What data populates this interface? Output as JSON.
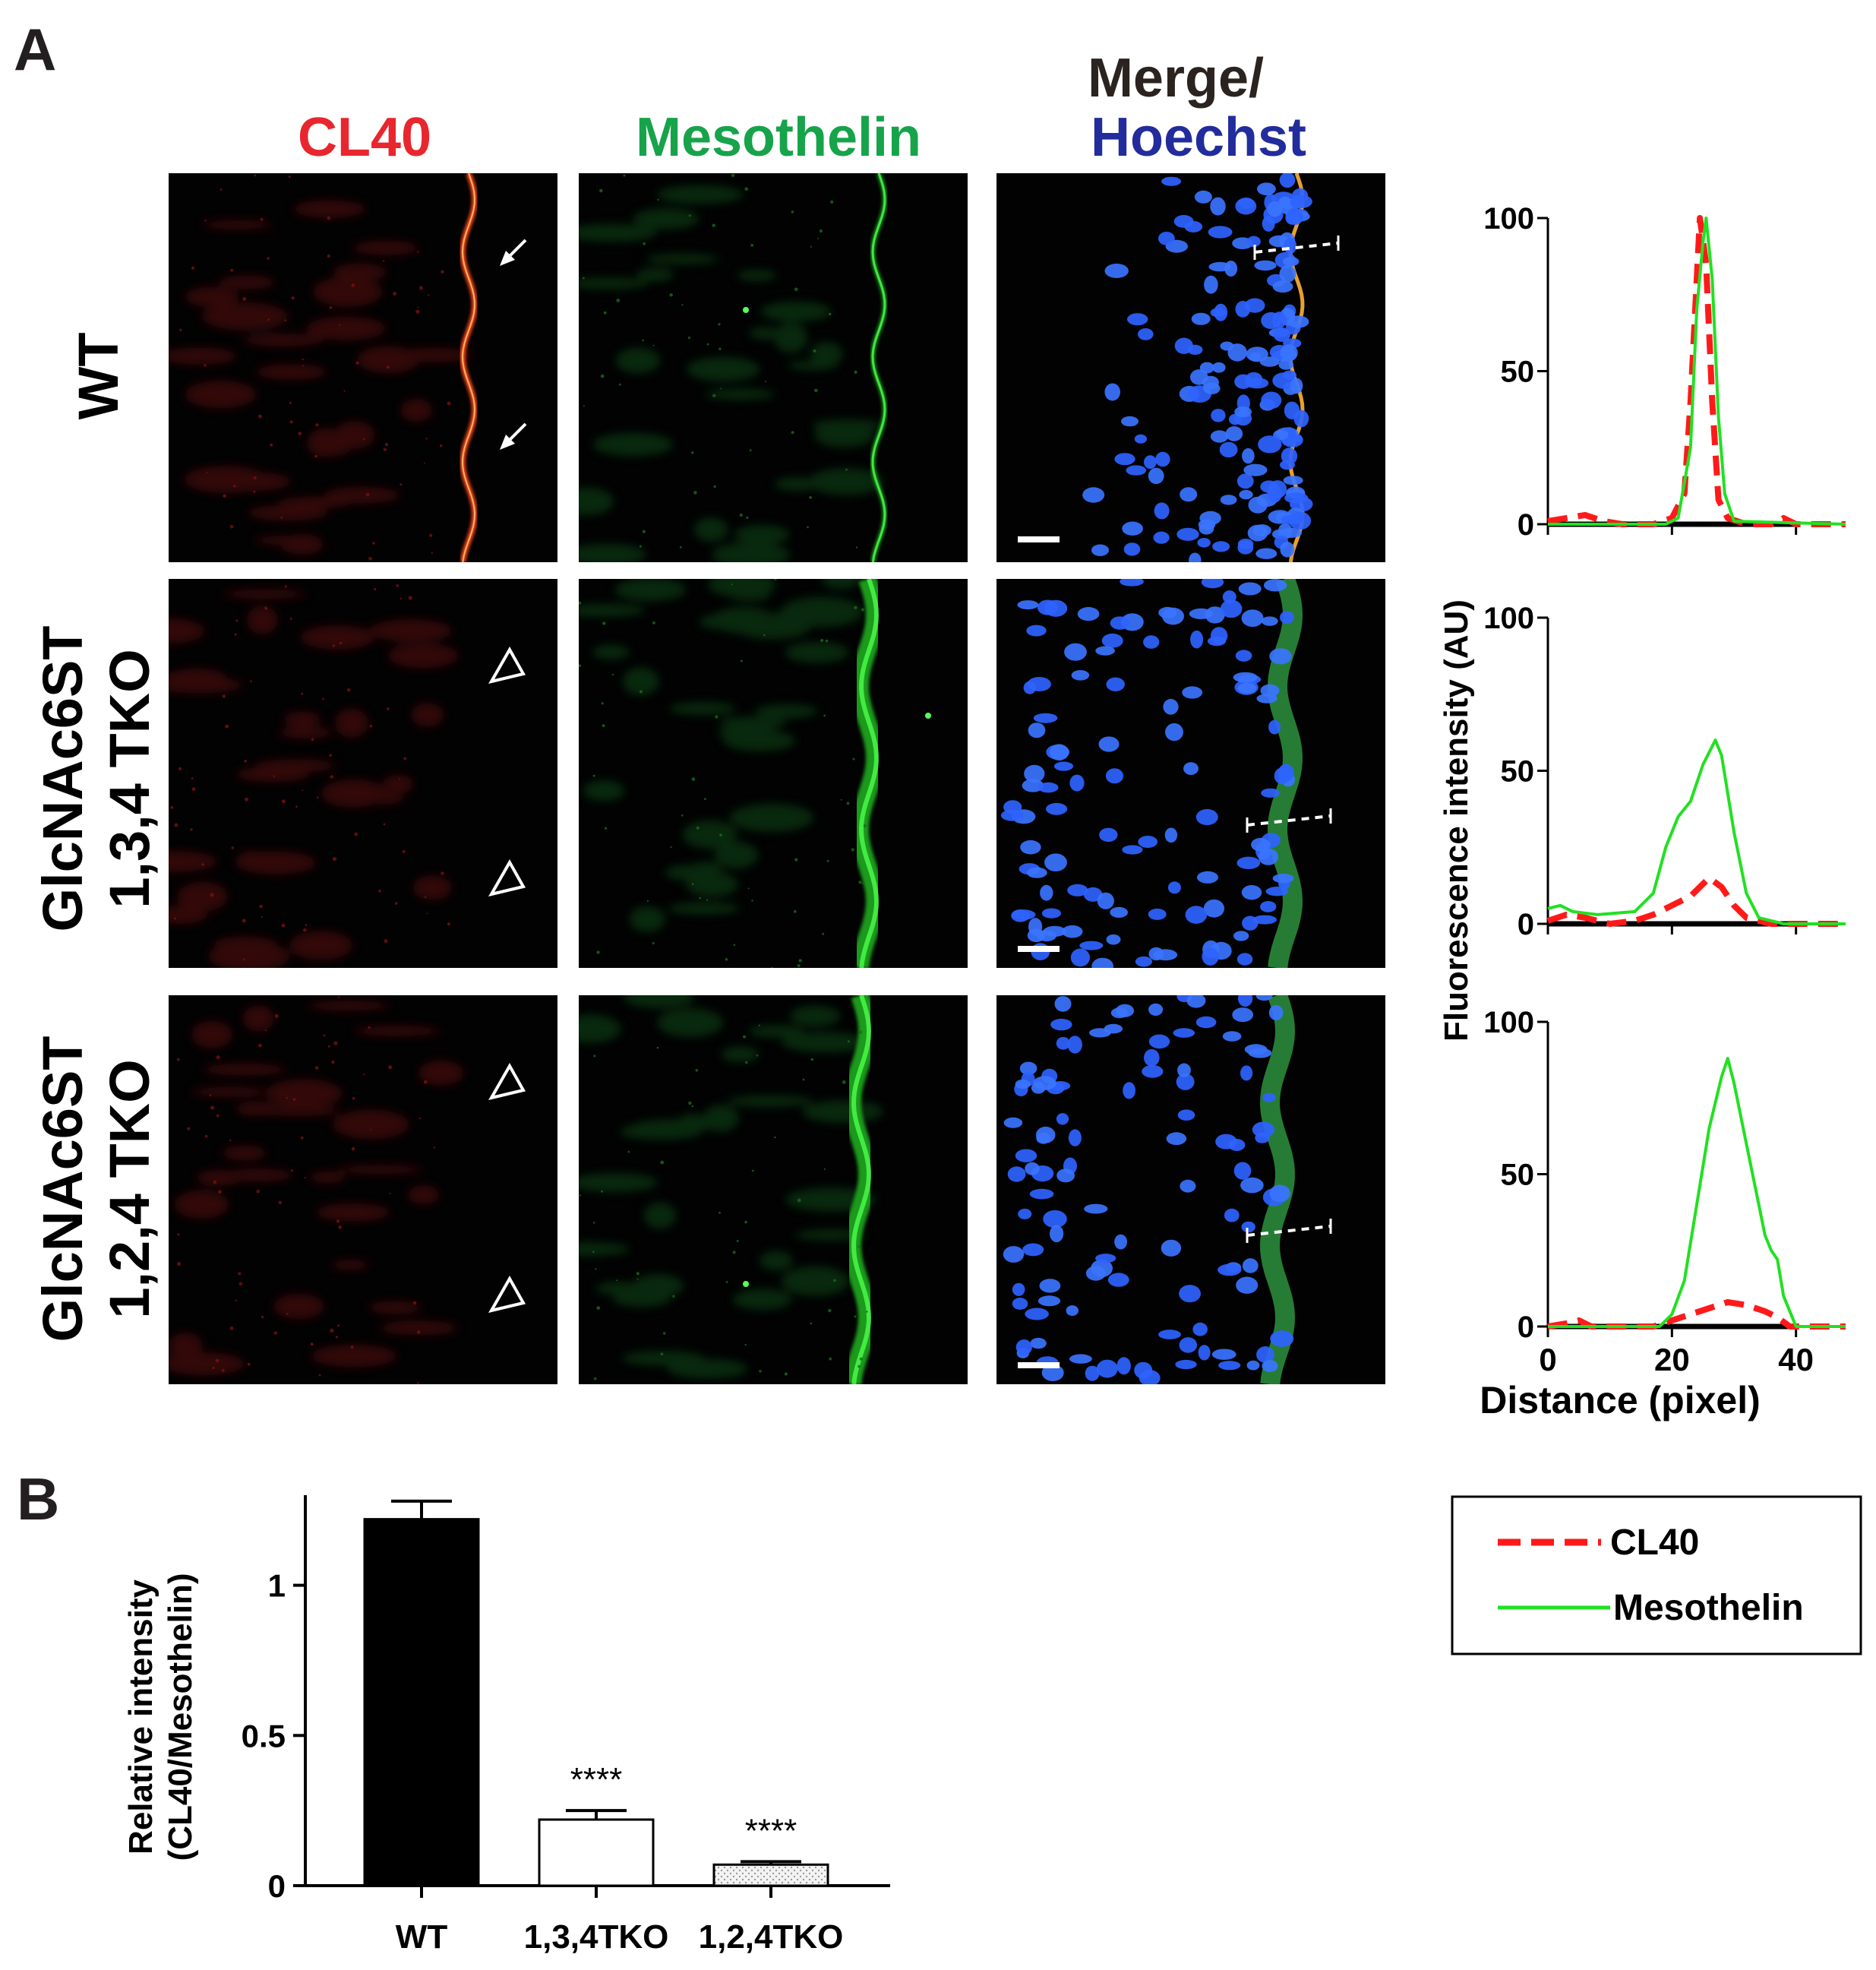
{
  "panel_a": {
    "label": "A",
    "columns": [
      {
        "text": "CL40",
        "color": "#e8262e"
      },
      {
        "text": "Mesothelin",
        "color": "#16a34a"
      },
      {
        "text": "Merge/",
        "color": "#2a2320"
      },
      {
        "text": "Hoechst",
        "color": "#222c9c"
      }
    ],
    "rows": [
      {
        "line1": "WT",
        "line2": ""
      },
      {
        "line1": "GlcNAc6ST",
        "line2": "1,3,4 TKO"
      },
      {
        "line1": "GlcNAc6ST",
        "line2": "1,2,4 TKO"
      }
    ],
    "markers": [
      "arrow",
      "open-triangle"
    ]
  },
  "panel_b": {
    "label": "B"
  },
  "colors": {
    "cl40": "#ff1a1a",
    "mesothelin": "#22e022",
    "hoechst": "#2b5cff",
    "bar_wt": "#000000",
    "bar_134": "#ffffff",
    "bar_124": "#e4e4e4"
  },
  "legend": {
    "items": [
      {
        "name": "CL40",
        "style": "dashed-red"
      },
      {
        "name": "Mesothelin",
        "style": "solid-green"
      }
    ]
  },
  "chart_data": [
    {
      "type": "line",
      "panel": "A-profile-WT",
      "ylabel": "Fluorescence intensity (AU)",
      "xlabel": "",
      "xlim": [
        0,
        48
      ],
      "ylim": [
        0,
        100
      ],
      "yticks": [
        0,
        50,
        100
      ],
      "series": [
        {
          "name": "CL40",
          "points": [
            [
              0,
              1
            ],
            [
              3,
              2
            ],
            [
              6,
              3
            ],
            [
              9,
              1
            ],
            [
              12,
              0
            ],
            [
              17,
              0
            ],
            [
              20,
              2
            ],
            [
              22,
              10
            ],
            [
              23,
              40
            ],
            [
              24,
              80
            ],
            [
              24.5,
              100
            ],
            [
              25.5,
              85
            ],
            [
              26.5,
              40
            ],
            [
              27.5,
              8
            ],
            [
              29,
              2
            ],
            [
              32,
              0
            ],
            [
              36,
              0
            ],
            [
              38,
              2
            ],
            [
              40,
              0
            ],
            [
              48,
              0
            ]
          ]
        },
        {
          "name": "Mesothelin",
          "points": [
            [
              0,
              0
            ],
            [
              19,
              0
            ],
            [
              21,
              2
            ],
            [
              23,
              25
            ],
            [
              24,
              70
            ],
            [
              25,
              92
            ],
            [
              25.5,
              100
            ],
            [
              26.5,
              80
            ],
            [
              27.5,
              35
            ],
            [
              28.5,
              10
            ],
            [
              30,
              1
            ],
            [
              48,
              0
            ]
          ]
        }
      ]
    },
    {
      "type": "line",
      "panel": "A-profile-134TKO",
      "xlim": [
        0,
        48
      ],
      "ylim": [
        0,
        100
      ],
      "yticks": [
        0,
        50,
        100
      ],
      "series": [
        {
          "name": "CL40",
          "points": [
            [
              0,
              1
            ],
            [
              3,
              3
            ],
            [
              6,
              2
            ],
            [
              10,
              0
            ],
            [
              14,
              1
            ],
            [
              17,
              3
            ],
            [
              20,
              6
            ],
            [
              23,
              9
            ],
            [
              26,
              15
            ],
            [
              28,
              12
            ],
            [
              30,
              6
            ],
            [
              32,
              2
            ],
            [
              36,
              0
            ],
            [
              48,
              0
            ]
          ]
        },
        {
          "name": "Mesothelin",
          "points": [
            [
              0,
              5
            ],
            [
              2,
              6
            ],
            [
              4,
              4
            ],
            [
              8,
              3
            ],
            [
              14,
              4
            ],
            [
              17,
              10
            ],
            [
              19,
              25
            ],
            [
              21,
              35
            ],
            [
              23,
              40
            ],
            [
              25,
              52
            ],
            [
              27,
              60
            ],
            [
              28,
              55
            ],
            [
              30,
              30
            ],
            [
              32,
              10
            ],
            [
              34,
              2
            ],
            [
              38,
              0
            ],
            [
              48,
              0
            ]
          ]
        }
      ]
    },
    {
      "type": "line",
      "panel": "A-profile-124TKO",
      "xlabel": "Distance (pixel)",
      "xlim": [
        0,
        48
      ],
      "ylim": [
        0,
        100
      ],
      "xticks": [
        0,
        20,
        40
      ],
      "yticks": [
        0,
        50,
        100
      ],
      "series": [
        {
          "name": "CL40",
          "points": [
            [
              0,
              0
            ],
            [
              3,
              1
            ],
            [
              5,
              2
            ],
            [
              7,
              0
            ],
            [
              17,
              0
            ],
            [
              20,
              2
            ],
            [
              23,
              4
            ],
            [
              26,
              6
            ],
            [
              29,
              8
            ],
            [
              32,
              7
            ],
            [
              35,
              5
            ],
            [
              37,
              3
            ],
            [
              39,
              0
            ],
            [
              48,
              0
            ]
          ]
        },
        {
          "name": "Mesothelin",
          "points": [
            [
              0,
              0
            ],
            [
              18,
              0
            ],
            [
              20,
              4
            ],
            [
              22,
              15
            ],
            [
              24,
              40
            ],
            [
              26,
              65
            ],
            [
              28,
              82
            ],
            [
              29,
              88
            ],
            [
              30,
              80
            ],
            [
              32,
              60
            ],
            [
              34,
              40
            ],
            [
              35,
              30
            ],
            [
              36,
              25
            ],
            [
              37,
              22
            ],
            [
              38,
              10
            ],
            [
              40,
              0
            ],
            [
              48,
              0
            ]
          ]
        }
      ]
    },
    {
      "type": "bar",
      "panel": "B",
      "ylabel": "Relative intensity\n(CL40/Mesothelin)",
      "categories": [
        "WT",
        "1,3,4TKO",
        "1,2,4TKO"
      ],
      "values": [
        1.22,
        0.22,
        0.07
      ],
      "errors": [
        0.06,
        0.03,
        0.01
      ],
      "annotations": [
        "",
        "****",
        "****"
      ],
      "ylim": [
        0,
        1.3
      ],
      "yticks": [
        0,
        0.5,
        1
      ],
      "ytick_labels": [
        "0",
        "0.5",
        "1"
      ]
    }
  ]
}
